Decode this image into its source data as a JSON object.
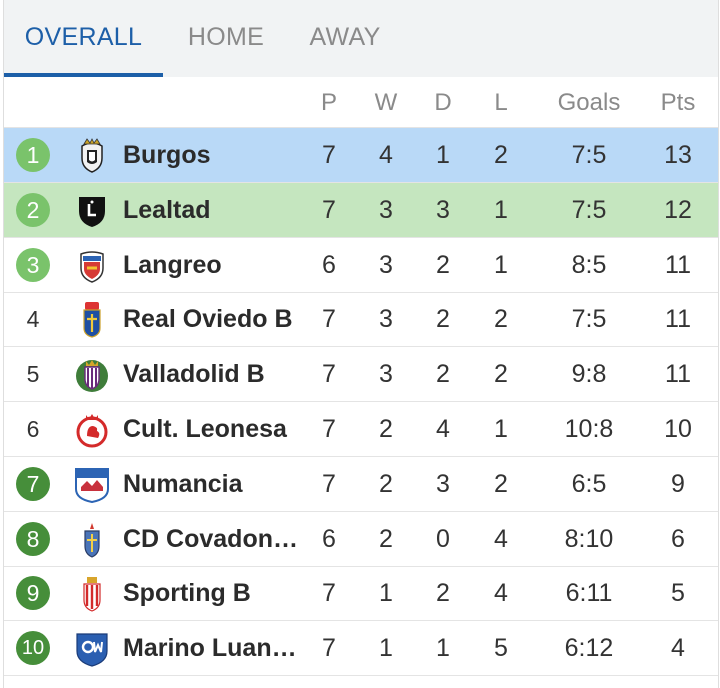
{
  "tabs": [
    {
      "label": "OVERALL",
      "active": true
    },
    {
      "label": "HOME",
      "active": false
    },
    {
      "label": "AWAY",
      "active": false
    }
  ],
  "columns": {
    "p": "P",
    "w": "W",
    "d": "D",
    "l": "L",
    "goals": "Goals",
    "pts": "Pts"
  },
  "colors": {
    "accent": "#1d5fa8",
    "row_highlight_blue": "#b9d9f7",
    "row_highlight_green": "#c5e6bf",
    "badge_light_green": "#7ac36b",
    "badge_dark_green": "#468e3a"
  },
  "standings": [
    {
      "pos": "1",
      "team": "Burgos",
      "crest": "burgos-crest-icon",
      "p": "7",
      "w": "4",
      "d": "1",
      "l": "2",
      "goals": "7:5",
      "pts": "13"
    },
    {
      "pos": "2",
      "team": "Lealtad",
      "crest": "lealtad-crest-icon",
      "p": "7",
      "w": "3",
      "d": "3",
      "l": "1",
      "goals": "7:5",
      "pts": "12"
    },
    {
      "pos": "3",
      "team": "Langreo",
      "crest": "langreo-crest-icon",
      "p": "6",
      "w": "3",
      "d": "2",
      "l": "1",
      "goals": "8:5",
      "pts": "11"
    },
    {
      "pos": "4",
      "team": "Real Oviedo B",
      "crest": "real-oviedo-crest-icon",
      "p": "7",
      "w": "3",
      "d": "2",
      "l": "2",
      "goals": "7:5",
      "pts": "11"
    },
    {
      "pos": "5",
      "team": "Valladolid B",
      "crest": "valladolid-crest-icon",
      "p": "7",
      "w": "3",
      "d": "2",
      "l": "2",
      "goals": "9:8",
      "pts": "11"
    },
    {
      "pos": "6",
      "team": "Cult. Leonesa",
      "crest": "cultural-leonesa-crest-icon",
      "p": "7",
      "w": "2",
      "d": "4",
      "l": "1",
      "goals": "10:8",
      "pts": "10"
    },
    {
      "pos": "7",
      "team": "Numancia",
      "crest": "numancia-crest-icon",
      "p": "7",
      "w": "2",
      "d": "3",
      "l": "2",
      "goals": "6:5",
      "pts": "9"
    },
    {
      "pos": "8",
      "team": "CD Covadon…",
      "crest": "covadonga-crest-icon",
      "p": "6",
      "w": "2",
      "d": "0",
      "l": "4",
      "goals": "8:10",
      "pts": "6"
    },
    {
      "pos": "9",
      "team": "Sporting B",
      "crest": "sporting-crest-icon",
      "p": "7",
      "w": "1",
      "d": "2",
      "l": "4",
      "goals": "6:11",
      "pts": "5"
    },
    {
      "pos": "10",
      "team": "Marino Luan…",
      "crest": "marino-luanco-crest-icon",
      "p": "7",
      "w": "1",
      "d": "1",
      "l": "5",
      "goals": "6:12",
      "pts": "4"
    }
  ]
}
